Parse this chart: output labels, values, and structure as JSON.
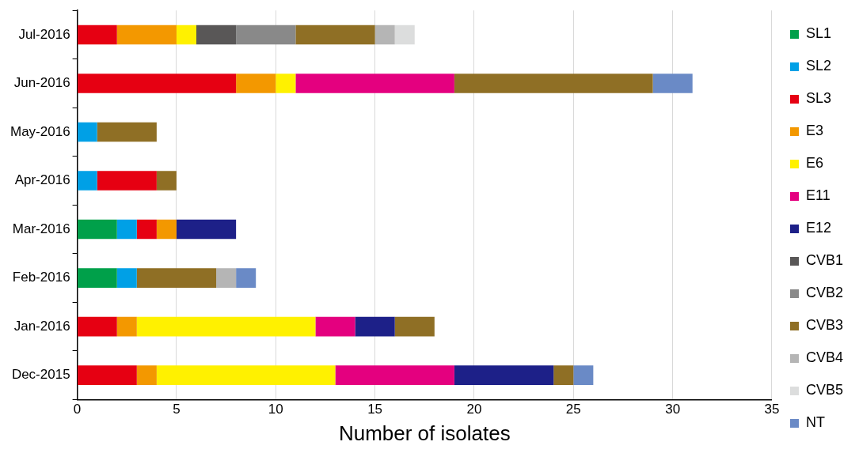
{
  "chart_data": {
    "type": "bar",
    "orientation": "horizontal",
    "stacked": true,
    "xlabel": "Number of isolates",
    "categories": [
      "Jul-2016",
      "Jun-2016",
      "May-2016",
      "Apr-2016",
      "Mar-2016",
      "Feb-2016",
      "Jan-2016",
      "Dec-2015"
    ],
    "xlim": [
      0,
      35
    ],
    "xticks": [
      0,
      5,
      10,
      15,
      20,
      25,
      30,
      35
    ],
    "grid": "x",
    "legend": "right",
    "series": [
      {
        "name": "SL1",
        "color": "#00a04a",
        "values": [
          null,
          null,
          null,
          null,
          2,
          2,
          null,
          null
        ]
      },
      {
        "name": "SL2",
        "color": "#00a0e6",
        "values": [
          null,
          null,
          1,
          1,
          1,
          1,
          null,
          null
        ]
      },
      {
        "name": "SL3",
        "color": "#e60012",
        "values": [
          2,
          8,
          null,
          3,
          1,
          null,
          2,
          3
        ]
      },
      {
        "name": "E3",
        "color": "#f39800",
        "values": [
          3,
          2,
          null,
          null,
          1,
          null,
          1,
          1
        ]
      },
      {
        "name": "E6",
        "color": "#fff100",
        "values": [
          1,
          1,
          null,
          null,
          null,
          null,
          9,
          9
        ]
      },
      {
        "name": "E11",
        "color": "#e4007f",
        "values": [
          null,
          8,
          null,
          null,
          null,
          null,
          2,
          6
        ]
      },
      {
        "name": "E12",
        "color": "#1d2088",
        "values": [
          null,
          null,
          null,
          null,
          3,
          null,
          2,
          5
        ]
      },
      {
        "name": "CVB1",
        "color": "#595757",
        "values": [
          2,
          null,
          null,
          null,
          null,
          null,
          null,
          null
        ]
      },
      {
        "name": "CVB2",
        "color": "#898989",
        "values": [
          3,
          null,
          null,
          null,
          null,
          null,
          null,
          null
        ]
      },
      {
        "name": "CVB3",
        "color": "#8f6f25",
        "values": [
          4,
          10,
          3,
          1,
          null,
          4,
          2,
          1
        ]
      },
      {
        "name": "CVB4",
        "color": "#b5b5b5",
        "values": [
          1,
          null,
          null,
          null,
          null,
          1,
          null,
          null
        ]
      },
      {
        "name": "CVB5",
        "color": "#dcdddd",
        "values": [
          1,
          null,
          null,
          null,
          null,
          null,
          null,
          null
        ]
      },
      {
        "name": "NT",
        "color": "#6a8ac6",
        "values": [
          null,
          2,
          null,
          null,
          null,
          1,
          null,
          1
        ]
      }
    ]
  }
}
